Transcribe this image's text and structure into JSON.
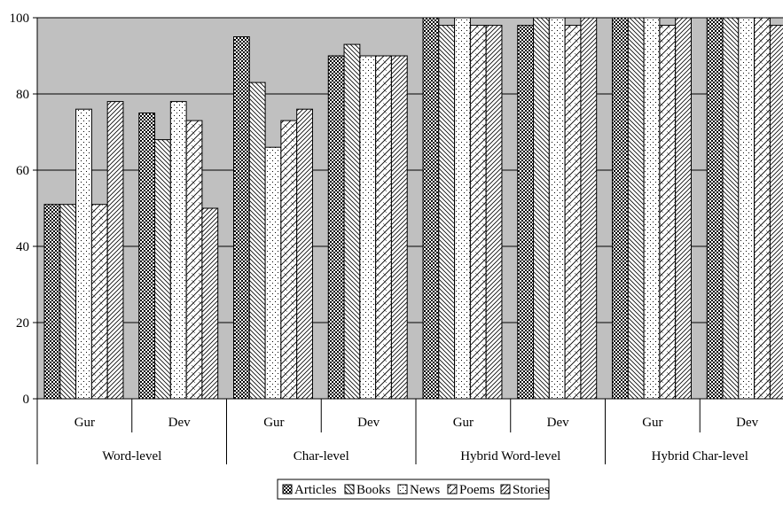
{
  "chart_data": {
    "type": "bar",
    "title": "",
    "xlabel": "",
    "ylabel": "",
    "ylim": [
      0,
      100
    ],
    "yticks": [
      0,
      20,
      40,
      60,
      80,
      100
    ],
    "grid": true,
    "legend_position": "bottom",
    "groups": [
      "Word-level",
      "Char-level",
      "Hybrid Word-level",
      "Hybrid Char-level"
    ],
    "subcategories": [
      "Gur",
      "Dev"
    ],
    "categories": [
      "Gur",
      "Dev",
      "Gur",
      "Dev",
      "Gur",
      "Dev",
      "Gur",
      "Dev"
    ],
    "series": [
      {
        "name": "Articles",
        "pattern": "dots",
        "values": [
          51,
          75,
          95,
          90,
          100,
          98,
          100,
          100
        ]
      },
      {
        "name": "Books",
        "pattern": "diag-right",
        "values": [
          51,
          68,
          83,
          93,
          98,
          100,
          100,
          100
        ]
      },
      {
        "name": "News",
        "pattern": "fine-dots",
        "values": [
          76,
          78,
          66,
          90,
          100,
          100,
          100,
          100
        ]
      },
      {
        "name": "Poems",
        "pattern": "crosshatch",
        "values": [
          51,
          73,
          73,
          90,
          98,
          98,
          98,
          100
        ]
      },
      {
        "name": "Stories",
        "pattern": "diag-left",
        "values": [
          78,
          50,
          76,
          90,
          98,
          100,
          100,
          98
        ]
      }
    ],
    "colors": {
      "plot_background": "#c0c0c0",
      "bar_fill": "#ffffff",
      "stroke": "#000000"
    }
  }
}
